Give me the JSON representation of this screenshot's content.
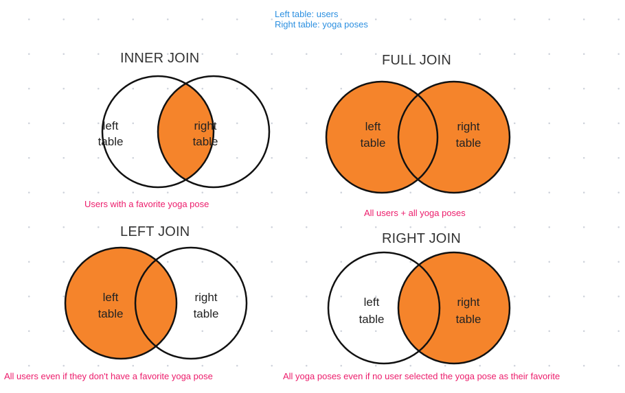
{
  "legend": {
    "left": "Left table: users",
    "right": "Right table: yoga poses"
  },
  "colors": {
    "fill": "#f5842b",
    "stroke": "#111111",
    "legend": "#2b8fe0",
    "caption": "#ec1c6b"
  },
  "circle_labels": {
    "left_line1": "left",
    "left_line2": "table",
    "right_line1": "right",
    "right_line2": "table"
  },
  "joins": {
    "inner": {
      "title": "INNER JOIN",
      "caption": "Users with a favorite yoga pose",
      "highlight": "intersection"
    },
    "full": {
      "title": "FULL JOIN",
      "caption": "All users + all yoga poses",
      "highlight": "both"
    },
    "left": {
      "title": "LEFT JOIN",
      "caption": "All users even if they don't have a favorite yoga pose",
      "highlight": "left"
    },
    "right": {
      "title": "RIGHT JOIN",
      "caption": "All yoga poses even if no user selected the yoga pose as their favorite",
      "highlight": "right"
    }
  }
}
